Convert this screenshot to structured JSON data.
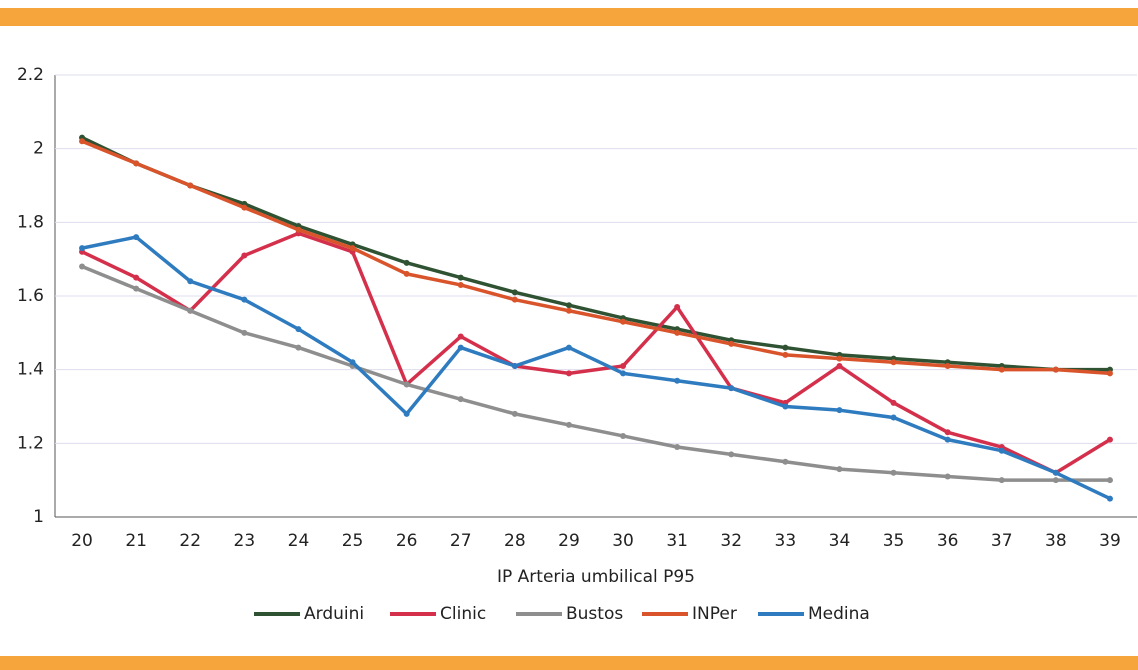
{
  "chart_data": {
    "type": "line",
    "x_label": "IP Arteria umbilical P95",
    "categories": [
      "20",
      "21",
      "22",
      "23",
      "24",
      "25",
      "26",
      "27",
      "28",
      "29",
      "30",
      "31",
      "32",
      "33",
      "34",
      "35",
      "36",
      "37",
      "38",
      "39"
    ],
    "ylim": [
      1,
      2.2
    ],
    "yticks": [
      1,
      1.2,
      1.4,
      1.6,
      1.8,
      2,
      2.2
    ],
    "grid": true,
    "legend": "bottom",
    "series": [
      {
        "name": "Arduini",
        "color": "#2f5233",
        "values": [
          2.03,
          1.96,
          1.9,
          1.85,
          1.79,
          1.74,
          1.69,
          1.65,
          1.61,
          1.575,
          1.54,
          1.51,
          1.48,
          1.46,
          1.44,
          1.43,
          1.42,
          1.41,
          1.4,
          1.4
        ]
      },
      {
        "name": "Clinic",
        "color": "#d4304c",
        "values": [
          1.72,
          1.65,
          1.56,
          1.71,
          1.77,
          1.72,
          1.36,
          1.49,
          1.41,
          1.39,
          1.41,
          1.57,
          1.35,
          1.31,
          1.41,
          1.31,
          1.23,
          1.19,
          1.12,
          1.21
        ]
      },
      {
        "name": "Bustos",
        "color": "#8e8e8e",
        "values": [
          1.68,
          1.62,
          1.56,
          1.5,
          1.46,
          1.41,
          1.36,
          1.32,
          1.28,
          1.25,
          1.22,
          1.19,
          1.17,
          1.15,
          1.13,
          1.12,
          1.11,
          1.1,
          1.1,
          1.1
        ]
      },
      {
        "name": "INPer",
        "color": "#d9542a",
        "values": [
          2.02,
          1.96,
          1.9,
          1.84,
          1.78,
          1.73,
          1.66,
          1.63,
          1.59,
          1.56,
          1.53,
          1.5,
          1.47,
          1.44,
          1.43,
          1.42,
          1.41,
          1.4,
          1.4,
          1.39
        ]
      },
      {
        "name": "Medina",
        "color": "#2e7bbf",
        "values": [
          1.73,
          1.76,
          1.64,
          1.59,
          1.51,
          1.42,
          1.28,
          1.46,
          1.41,
          1.46,
          1.39,
          1.37,
          1.35,
          1.3,
          1.29,
          1.27,
          1.21,
          1.18,
          1.12,
          1.05
        ]
      }
    ]
  }
}
